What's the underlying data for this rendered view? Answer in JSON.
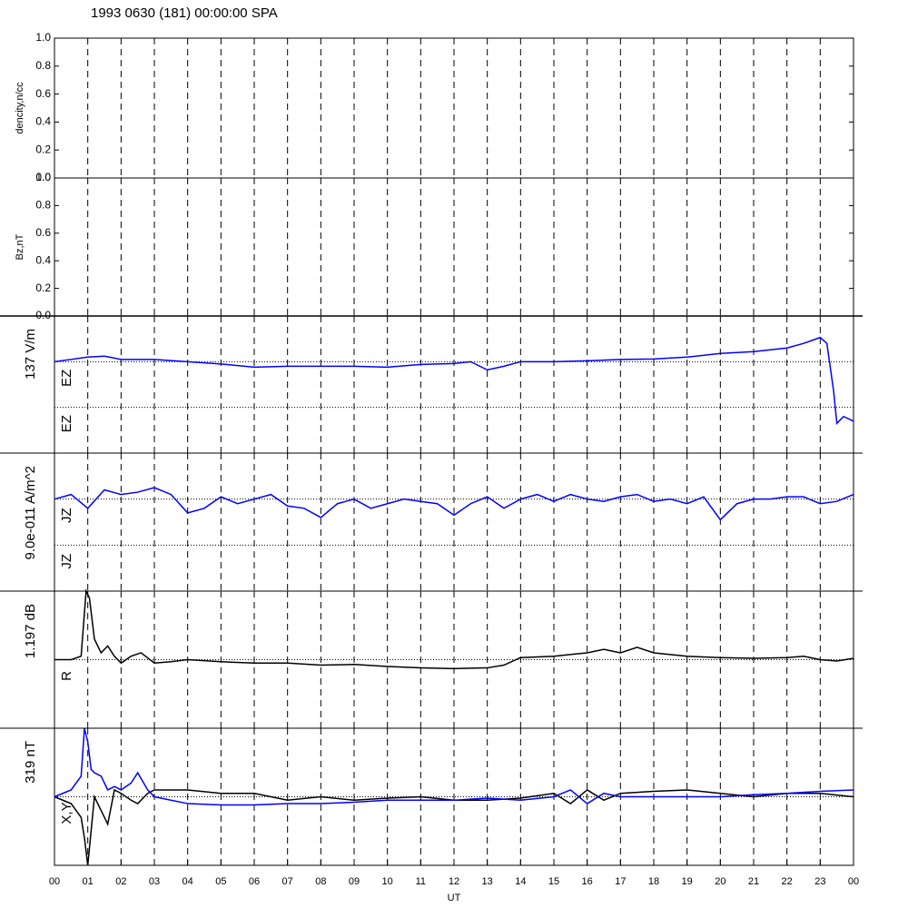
{
  "title": "1993 0630 (181) 00:00:00 SPA",
  "xaxis": {
    "label": "UT",
    "xlim": [
      0,
      24
    ],
    "grid": true,
    "xticks": [
      {
        "value": 0,
        "label": "00"
      },
      {
        "value": 1,
        "label": "01"
      },
      {
        "value": 2,
        "label": "02"
      },
      {
        "value": 3,
        "label": "03"
      },
      {
        "value": 4,
        "label": "04"
      },
      {
        "value": 5,
        "label": "05"
      },
      {
        "value": 6,
        "label": "06"
      },
      {
        "value": 7,
        "label": "07"
      },
      {
        "value": 8,
        "label": "08"
      },
      {
        "value": 9,
        "label": "09"
      },
      {
        "value": 10,
        "label": "10"
      },
      {
        "value": 11,
        "label": "11"
      },
      {
        "value": 12,
        "label": "12"
      },
      {
        "value": 13,
        "label": "13"
      },
      {
        "value": 14,
        "label": "14"
      },
      {
        "value": 15,
        "label": "15"
      },
      {
        "value": 16,
        "label": "16"
      },
      {
        "value": 17,
        "label": "17"
      },
      {
        "value": 18,
        "label": "18"
      },
      {
        "value": 19,
        "label": "19"
      },
      {
        "value": 20,
        "label": "20"
      },
      {
        "value": 21,
        "label": "21"
      },
      {
        "value": 22,
        "label": "22"
      },
      {
        "value": 23,
        "label": "23"
      },
      {
        "value": 24,
        "label": "00"
      }
    ]
  },
  "chart_data": [
    {
      "type": "line",
      "ylabel": "dencity,n/cc",
      "ylim": [
        0,
        1
      ],
      "yticks": [
        {
          "value": 0,
          "label": "0.0"
        },
        0.2,
        0.4,
        0.6,
        0.8,
        {
          "value": 1,
          "label": "1.0"
        }
      ],
      "x": [],
      "series": []
    },
    {
      "type": "line",
      "ylabel": "Bz,nT",
      "ylim": [
        0,
        1
      ],
      "yticks": [
        {
          "value": 0,
          "label": "0.0"
        },
        0.2,
        0.4,
        0.6,
        0.8,
        {
          "value": 1,
          "label": "1.0"
        }
      ],
      "x": [],
      "series": []
    },
    {
      "type": "line",
      "scale_label": "137 V/m",
      "ylim": [
        -2,
        1
      ],
      "ref_lines": [
        0,
        -1
      ],
      "tags": [
        "EZ",
        "EZ"
      ],
      "x": [
        0,
        0.5,
        1,
        1.5,
        2,
        3,
        4,
        5,
        6,
        7,
        8,
        9,
        10,
        11,
        12,
        12.5,
        13,
        13.5,
        14,
        15,
        16,
        17,
        18,
        19,
        20,
        21,
        22,
        22.5,
        23,
        23.2,
        23.4,
        23.5,
        23.7,
        24
      ],
      "series": [
        {
          "color": "#0000ff",
          "values": [
            0,
            0.05,
            0.1,
            0.12,
            0.05,
            0.05,
            0,
            -0.05,
            -0.12,
            -0.1,
            -0.1,
            -0.1,
            -0.12,
            -0.06,
            -0.04,
            0,
            -0.18,
            -0.1,
            0,
            0,
            0.02,
            0.05,
            0.06,
            0.1,
            0.18,
            0.22,
            0.3,
            0.4,
            0.53,
            0.4,
            -0.63,
            -1.35,
            -1.2,
            -1.3
          ]
        }
      ]
    },
    {
      "type": "line",
      "scale_label": "9.0e-011 A/m^2",
      "ylim": [
        -2,
        1
      ],
      "ref_lines": [
        0,
        -1
      ],
      "tags": [
        "JZ",
        "JZ"
      ],
      "x": [
        0,
        0.5,
        1,
        1.5,
        2,
        2.5,
        3,
        3.5,
        4,
        4.5,
        5,
        5.5,
        6,
        6.5,
        7,
        7.5,
        8,
        8.5,
        9,
        9.5,
        10,
        10.5,
        11,
        11.5,
        12,
        12.5,
        13,
        13.5,
        14,
        14.5,
        15,
        15.5,
        16,
        16.5,
        17,
        17.5,
        18,
        18.5,
        19,
        19.5,
        20,
        20.5,
        21,
        21.5,
        22,
        22.5,
        23,
        23.5,
        24
      ],
      "series": [
        {
          "color": "#0000ff",
          "values": [
            0,
            0.1,
            -0.2,
            0.2,
            0.1,
            0.15,
            0.25,
            0.1,
            -0.3,
            -0.2,
            0.05,
            -0.1,
            0,
            0.1,
            -0.15,
            -0.2,
            -0.4,
            -0.1,
            0,
            -0.2,
            -0.1,
            0,
            -0.05,
            -0.1,
            -0.35,
            -0.1,
            0.05,
            -0.2,
            0,
            0.1,
            -0.05,
            0.1,
            0,
            -0.05,
            0.05,
            0.1,
            -0.05,
            0,
            -0.1,
            0.05,
            -0.45,
            -0.1,
            0,
            0,
            0.05,
            0.05,
            -0.1,
            -0.05,
            0.1
          ]
        }
      ]
    },
    {
      "type": "line",
      "scale_label": "1.197 dB",
      "ylim": [
        -1,
        1
      ],
      "ref_lines": [
        0
      ],
      "tags": [
        "R"
      ],
      "x": [
        0,
        0.5,
        0.8,
        0.95,
        1.05,
        1.2,
        1.4,
        1.6,
        1.8,
        2,
        2.3,
        2.6,
        3,
        3.5,
        4,
        5,
        6,
        7,
        8,
        9,
        10,
        11,
        12,
        13,
        13.5,
        14,
        15,
        16,
        16.5,
        17,
        17.5,
        18,
        19,
        20,
        21,
        22,
        22.5,
        23,
        23.5,
        24
      ],
      "series": [
        {
          "color": "#000000",
          "values": [
            0,
            0,
            0.05,
            1.0,
            0.9,
            0.3,
            0.1,
            0.2,
            0.05,
            -0.05,
            0.05,
            0.1,
            -0.05,
            -0.03,
            0,
            -0.03,
            -0.05,
            -0.05,
            -0.08,
            -0.07,
            -0.1,
            -0.12,
            -0.13,
            -0.12,
            -0.08,
            0.03,
            0.05,
            0.1,
            0.15,
            0.1,
            0.18,
            0.1,
            0.05,
            0.03,
            0.02,
            0.03,
            0.05,
            0,
            -0.02,
            0.02
          ]
        }
      ]
    },
    {
      "type": "line",
      "scale_label": "319 nT",
      "ylim": [
        -1,
        1
      ],
      "ref_lines": [
        0
      ],
      "tags": [
        "X,Y"
      ],
      "x": [
        0,
        0.5,
        0.8,
        0.9,
        1,
        1.1,
        1.2,
        1.4,
        1.6,
        1.8,
        2,
        2.3,
        2.5,
        2.8,
        3,
        4,
        5,
        6,
        7,
        8,
        9,
        10,
        11,
        12,
        13,
        14,
        15,
        15.5,
        16,
        16.5,
        17,
        18,
        19,
        20,
        21,
        22,
        23,
        24
      ],
      "series": [
        {
          "color": "#000000",
          "values": [
            0,
            -0.1,
            -0.3,
            -0.6,
            -1.0,
            -0.5,
            0,
            -0.2,
            -0.4,
            0.1,
            0.05,
            -0.05,
            -0.1,
            0.05,
            0.1,
            0.1,
            0.05,
            0.05,
            -0.05,
            0,
            -0.05,
            -0.02,
            0,
            -0.05,
            -0.05,
            -0.02,
            0.05,
            -0.1,
            0.1,
            -0.05,
            0.05,
            0.08,
            0.1,
            0.05,
            0,
            0.05,
            0.05,
            0
          ]
        },
        {
          "color": "#0000ff",
          "values": [
            0,
            0.1,
            0.3,
            1.0,
            0.8,
            0.4,
            0.35,
            0.3,
            0.1,
            0.15,
            0.1,
            0.2,
            0.35,
            0.1,
            0,
            -0.1,
            -0.12,
            -0.12,
            -0.1,
            -0.1,
            -0.08,
            -0.05,
            -0.05,
            -0.05,
            -0.02,
            -0.05,
            0,
            0.1,
            -0.1,
            0.05,
            0,
            0,
            0,
            0,
            0.03,
            0.05,
            0.08,
            0.1
          ]
        }
      ]
    }
  ]
}
